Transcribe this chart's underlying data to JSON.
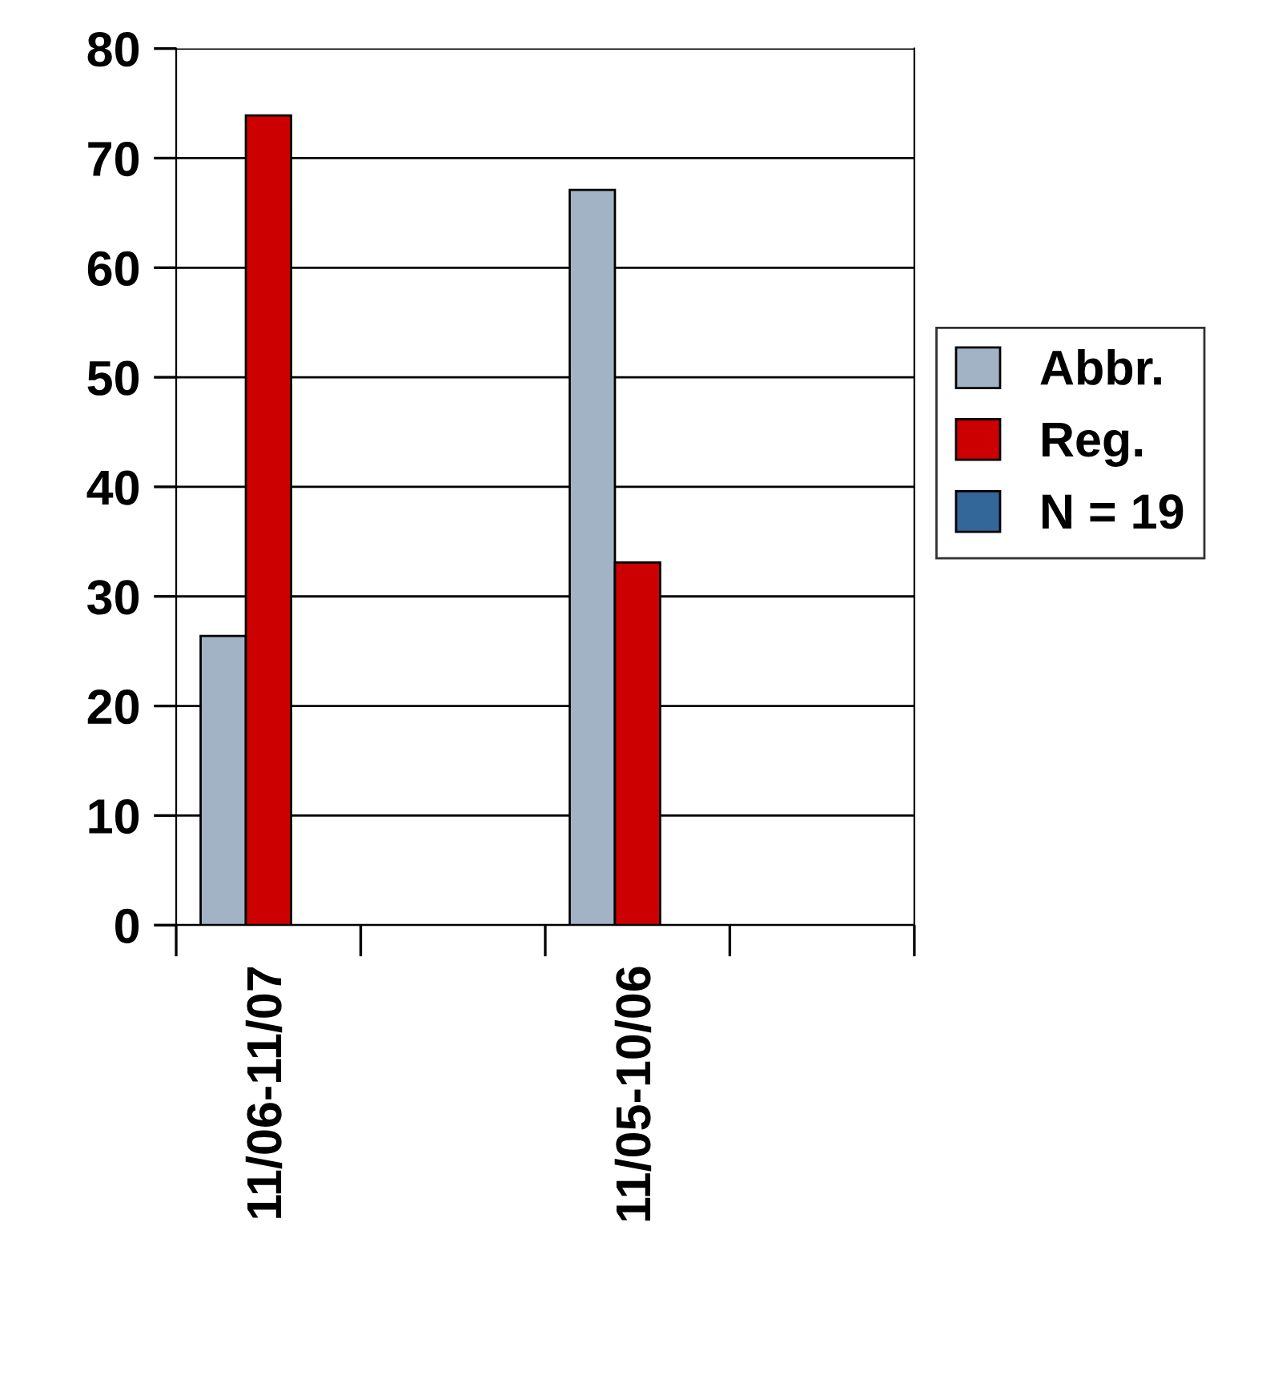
{
  "chart_data": {
    "type": "bar",
    "categories": [
      "11/06-11/07",
      null,
      "11/05-10/06",
      null
    ],
    "series": [
      {
        "name": "Abbr.",
        "color": "#a3b3c6",
        "values": [
          26.4,
          null,
          67.1,
          null
        ]
      },
      {
        "name": "Reg.",
        "color": "#cc0000",
        "values": [
          73.9,
          null,
          33.1,
          null
        ]
      },
      {
        "name": "N = 19",
        "color": "#336699",
        "values": [
          null,
          null,
          null,
          null
        ]
      }
    ],
    "ylim": [
      0,
      80
    ],
    "yticks": [
      0,
      10,
      20,
      30,
      40,
      50,
      60,
      70,
      80
    ],
    "grid": "y",
    "legend": "right"
  }
}
